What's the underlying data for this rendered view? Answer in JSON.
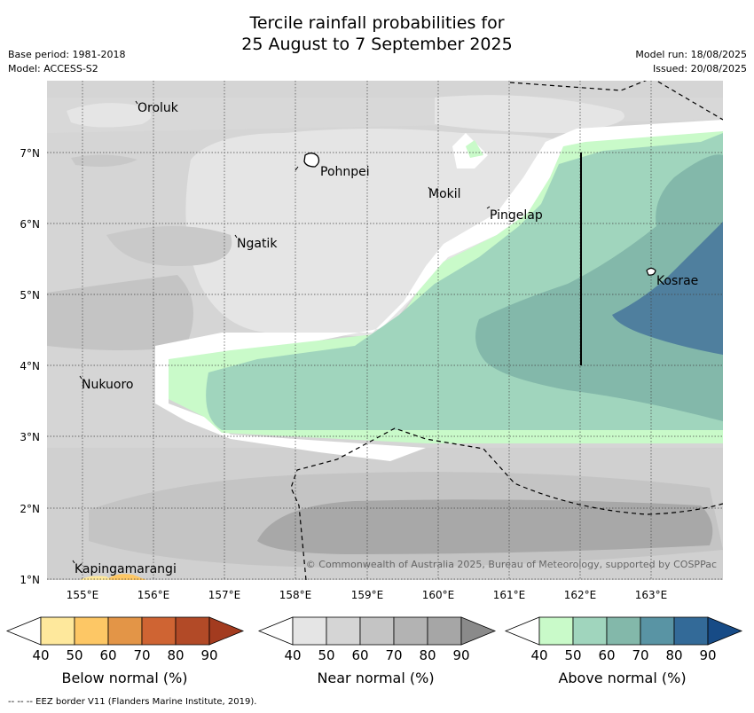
{
  "title": {
    "line1": "Tercile rainfall probabilities for",
    "line2": "25 August to 7 September 2025"
  },
  "meta": {
    "base_period": "Base period: 1981-2018",
    "model": "Model: ACCESS-S2",
    "model_run": "Model run: 18/08/2025",
    "issued": "Issued: 20/08/2025"
  },
  "map": {
    "lat_labels": [
      "7°N",
      "6°N",
      "5°N",
      "4°N",
      "3°N",
      "2°N",
      "1°N"
    ],
    "lon_labels": [
      "155°E",
      "156°E",
      "157°E",
      "158°E",
      "159°E",
      "160°E",
      "161°E",
      "162°E",
      "163°E"
    ],
    "places": {
      "oroluk": "Oroluk",
      "pohnpei": "Pohnpei",
      "mokil": "Mokil",
      "pingelap": "Pingelap",
      "ngatik": "Ngatik",
      "kosrae": "Kosrae",
      "nukuoro": "Nukuoro",
      "kapingamarangi": "Kapingamarangi"
    },
    "copyright": "© Commonwealth of Australia 2025, Bureau of Meteorology, supported by COSPPac"
  },
  "legends": {
    "below": {
      "label": "Below normal (%)",
      "colors": [
        "#ffffff",
        "#fee89c",
        "#fdc765",
        "#e39547",
        "#cf6433",
        "#b24a27",
        "#a33b1f"
      ]
    },
    "near": {
      "label": "Near normal (%)",
      "colors": [
        "#ffffff",
        "#e5e5e5",
        "#d5d5d5",
        "#c4c4c4",
        "#b3b3b3",
        "#a6a6a6",
        "#8a8a8a"
      ]
    },
    "above": {
      "label": "Above normal (%)",
      "colors": [
        "#ffffff",
        "#c9fac9",
        "#a0d5bd",
        "#83b8aa",
        "#5994a4",
        "#336a98",
        "#174b86"
      ]
    },
    "ticks": [
      "40",
      "50",
      "60",
      "70",
      "80",
      "90"
    ]
  },
  "footnote": "--  --  -- EEZ border V11 (Flanders Marine Institute, 2019)."
}
